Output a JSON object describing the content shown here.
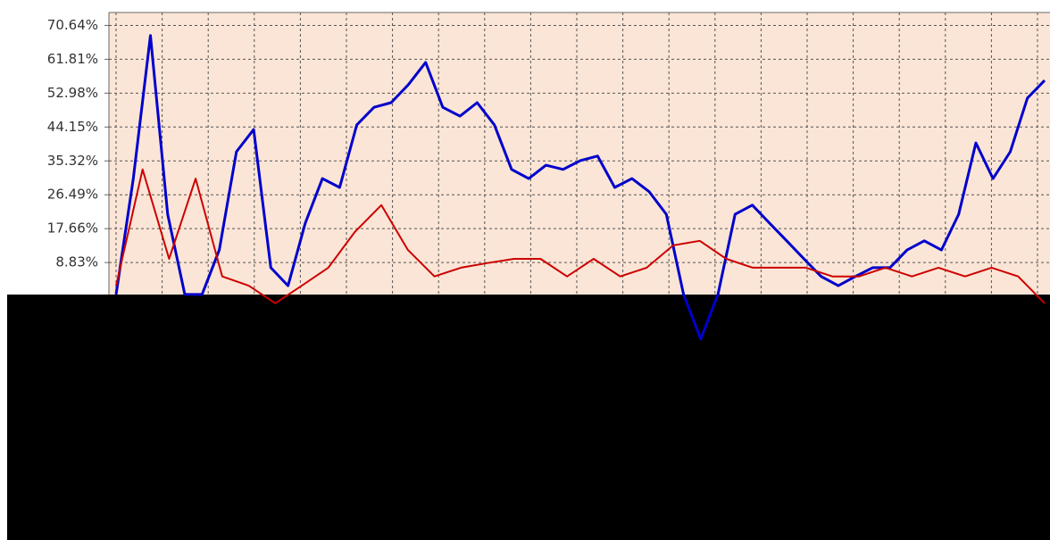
{
  "chart_data": {
    "type": "line",
    "ylim": [
      -60,
      74
    ],
    "yticks": [
      {
        "value": 70.64,
        "label": "70.64%"
      },
      {
        "value": 61.81,
        "label": "61.81%"
      },
      {
        "value": 52.98,
        "label": "52.98%"
      },
      {
        "value": 44.15,
        "label": "44.15%"
      },
      {
        "value": 35.32,
        "label": "35.32%"
      },
      {
        "value": 26.49,
        "label": "26.49%"
      },
      {
        "value": 17.66,
        "label": "17.66%"
      },
      {
        "value": 8.83,
        "label": "8.83%"
      }
    ],
    "grid": true,
    "series": [
      {
        "color": "#0000cc",
        "values": [
          0.5,
          30.7,
          68,
          21.4,
          0.5,
          0.5,
          12.1,
          37.7,
          43.5,
          7.5,
          2.8,
          19.1,
          30.7,
          28.4,
          44.7,
          49.3,
          50.5,
          55.2,
          61,
          49.3,
          47,
          50.5,
          44.7,
          33.1,
          30.7,
          34.2,
          33.1,
          35.4,
          36.6,
          28.4,
          30.7,
          27.3,
          21.4,
          0.5,
          -11.1,
          0.5,
          21.4,
          23.8,
          19.1,
          14.5,
          9.8,
          5.2,
          2.8,
          5.2,
          7.5,
          7.5,
          12.1,
          14.5,
          12.1,
          21.4,
          40,
          30.7,
          37.7,
          51.7,
          56.3
        ]
      },
      {
        "color": "#cc0000",
        "values": [
          2.8,
          33.1,
          9.8,
          30.7,
          5.2,
          2.8,
          -1.8,
          2.8,
          7.5,
          16.8,
          23.8,
          12.1,
          5.2,
          7.5,
          8.7,
          9.8,
          9.8,
          5.2,
          9.8,
          5.2,
          7.5,
          13.3,
          14.5,
          9.8,
          7.5,
          7.5,
          7.5,
          5.2,
          5.2,
          7.5,
          5.2,
          7.5,
          5.2,
          7.5,
          5.2,
          -1.8
        ]
      }
    ]
  }
}
